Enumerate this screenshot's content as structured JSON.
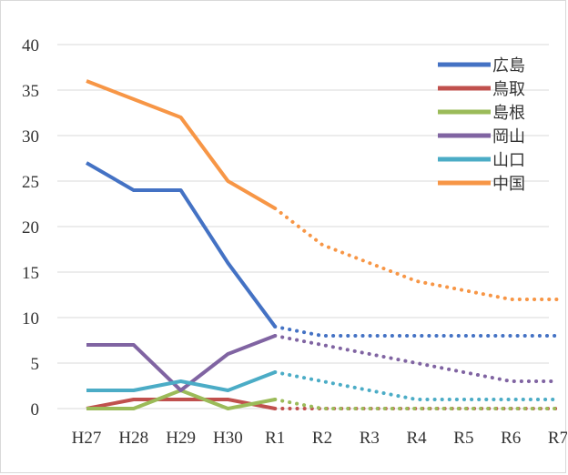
{
  "chart_data": {
    "type": "line",
    "title": "",
    "xlabel": "",
    "ylabel": "",
    "categories": [
      "H27",
      "H28",
      "H29",
      "H30",
      "R1",
      "R2",
      "R3",
      "R4",
      "R5",
      "R6",
      "R7"
    ],
    "ylim": [
      0,
      40
    ],
    "yticks": [
      0,
      5,
      10,
      15,
      20,
      25,
      30,
      35,
      40
    ],
    "grid": true,
    "legend_position": "top-right",
    "actual_through": "R1",
    "projected_from": "R1",
    "series": [
      {
        "name": "広島",
        "color": "#4472c4",
        "values": [
          27,
          24,
          24,
          16,
          9,
          8,
          8,
          8,
          8,
          8,
          8
        ]
      },
      {
        "name": "鳥取",
        "color": "#c0504d",
        "values": [
          0,
          1,
          1,
          1,
          0,
          0,
          0,
          0,
          0,
          0,
          0
        ]
      },
      {
        "name": "島根",
        "color": "#9bbb59",
        "values": [
          0,
          0,
          2,
          0,
          1,
          0,
          0,
          0,
          0,
          0,
          0
        ]
      },
      {
        "name": "岡山",
        "color": "#8064a2",
        "values": [
          7,
          7,
          2,
          6,
          8,
          7,
          6,
          5,
          4,
          3,
          3
        ]
      },
      {
        "name": "山口",
        "color": "#4bacc6",
        "values": [
          2,
          2,
          3,
          2,
          4,
          3,
          2,
          1,
          1,
          1,
          1
        ]
      },
      {
        "name": "中国",
        "color": "#f79646",
        "values": [
          36,
          34,
          32,
          25,
          22,
          18,
          16,
          14,
          13,
          12,
          12
        ]
      }
    ]
  }
}
